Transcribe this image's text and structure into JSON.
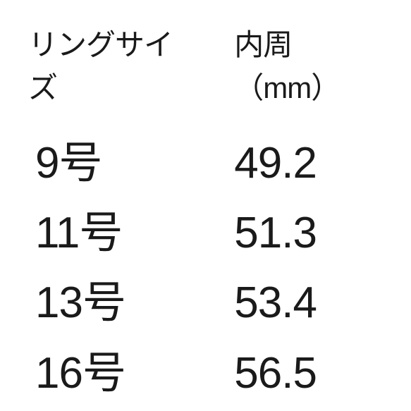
{
  "table": {
    "type": "table",
    "background_color": "#ffffff",
    "text_color": "#1a1a1a",
    "header_fontsize": 42,
    "cell_fontsize": 62,
    "font_weight": 300,
    "columns": [
      {
        "key": "size",
        "header": "リングサイズ"
      },
      {
        "key": "circumference",
        "header": "内周（mm）"
      }
    ],
    "rows": [
      {
        "size": "9号",
        "circumference": "49.2"
      },
      {
        "size": "11号",
        "circumference": "51.3"
      },
      {
        "size": "13号",
        "circumference": "53.4"
      },
      {
        "size": "16号",
        "circumference": "56.5"
      }
    ]
  }
}
